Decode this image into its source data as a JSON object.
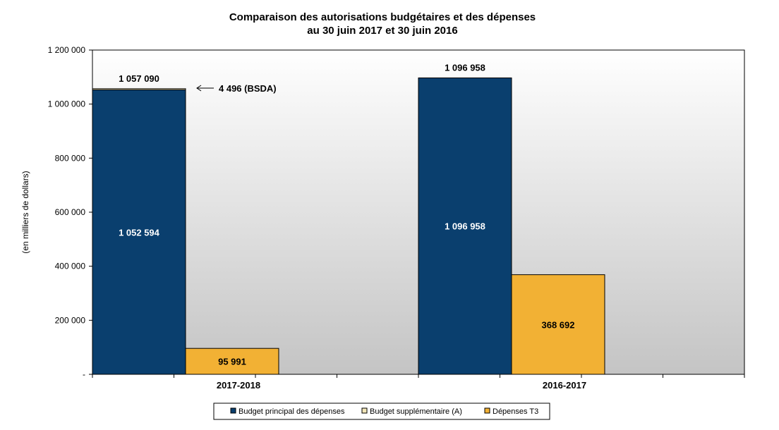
{
  "chart_data": {
    "type": "bar",
    "stacked": true,
    "title": "Comparaison des autorisations budgétaires et des dépenses",
    "subtitle": "au 30 juin 2017 et 30 juin 2016",
    "xlabel": "",
    "ylabel": "(en milliers de dollars)",
    "ylim": [
      0,
      1200000
    ],
    "yticks": [
      0,
      200000,
      400000,
      600000,
      800000,
      1000000,
      1200000
    ],
    "ytick_labels": [
      "-",
      "200 000",
      "400 000",
      "600 000",
      "800 000",
      "1 000 000",
      "1 200 000"
    ],
    "grid": false,
    "categories": [
      "2017-2018",
      "2016-2017"
    ],
    "series": [
      {
        "name": "Budget principal des dépenses",
        "color": "#0a3f6e",
        "stack": "autorisations",
        "values": [
          1052594,
          1096958
        ]
      },
      {
        "name": "Budget supplémentaire (A)",
        "color": "#f2e6b8",
        "stack": "autorisations",
        "values": [
          4496,
          0
        ]
      },
      {
        "name": "Dépenses T3",
        "color": "#f2b134",
        "stack": "depenses",
        "values": [
          95991,
          368692
        ]
      }
    ],
    "data_labels": {
      "main": [
        "1 052 594",
        "1 096 958"
      ],
      "totals": [
        "1 057 090",
        "1 096 958"
      ],
      "spending": [
        "95 991",
        "368 692"
      ]
    },
    "annotation": {
      "text": "4 496 (BSDA)",
      "category": "2017-2018"
    },
    "legend_position": "bottom"
  }
}
